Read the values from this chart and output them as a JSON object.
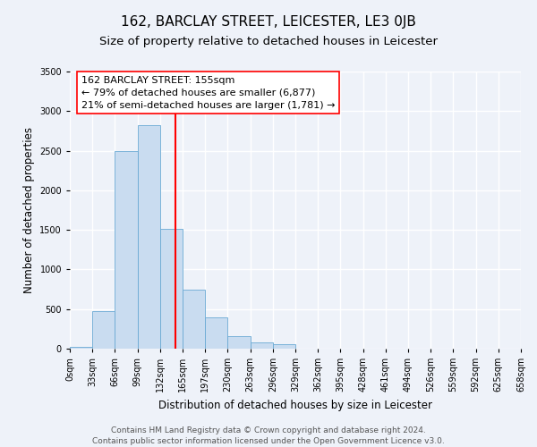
{
  "title": "162, BARCLAY STREET, LEICESTER, LE3 0JB",
  "subtitle": "Size of property relative to detached houses in Leicester",
  "xlabel": "Distribution of detached houses by size in Leicester",
  "ylabel": "Number of detached properties",
  "bin_edges": [
    0,
    33,
    66,
    99,
    132,
    165,
    198,
    231,
    264,
    297,
    330,
    363,
    396,
    429,
    462,
    495,
    528,
    561,
    594,
    627,
    660
  ],
  "bar_heights": [
    20,
    470,
    2500,
    2820,
    1510,
    750,
    400,
    155,
    75,
    55,
    0,
    0,
    0,
    0,
    0,
    0,
    0,
    0,
    0,
    0
  ],
  "bar_facecolor": "#c9dcf0",
  "bar_edgecolor": "#6aaad4",
  "vline_x": 155,
  "vline_color": "red",
  "annotation_title": "162 BARCLAY STREET: 155sqm",
  "annotation_line1": "← 79% of detached houses are smaller (6,877)",
  "annotation_line2": "21% of semi-detached houses are larger (1,781) →",
  "annotation_box_edgecolor": "red",
  "ylim": [
    0,
    3500
  ],
  "yticks": [
    0,
    500,
    1000,
    1500,
    2000,
    2500,
    3000,
    3500
  ],
  "xtick_labels": [
    "0sqm",
    "33sqm",
    "66sqm",
    "99sqm",
    "132sqm",
    "165sqm",
    "197sqm",
    "230sqm",
    "263sqm",
    "296sqm",
    "329sqm",
    "362sqm",
    "395sqm",
    "428sqm",
    "461sqm",
    "494sqm",
    "526sqm",
    "559sqm",
    "592sqm",
    "625sqm",
    "658sqm"
  ],
  "footer_line1": "Contains HM Land Registry data © Crown copyright and database right 2024.",
  "footer_line2": "Contains public sector information licensed under the Open Government Licence v3.0.",
  "bg_color": "#eef2f9",
  "plot_bg_color": "#eef2f9",
  "grid_color": "#ffffff",
  "title_fontsize": 11,
  "subtitle_fontsize": 9.5,
  "axis_label_fontsize": 8.5,
  "tick_fontsize": 7,
  "annotation_fontsize": 8,
  "footer_fontsize": 6.5
}
